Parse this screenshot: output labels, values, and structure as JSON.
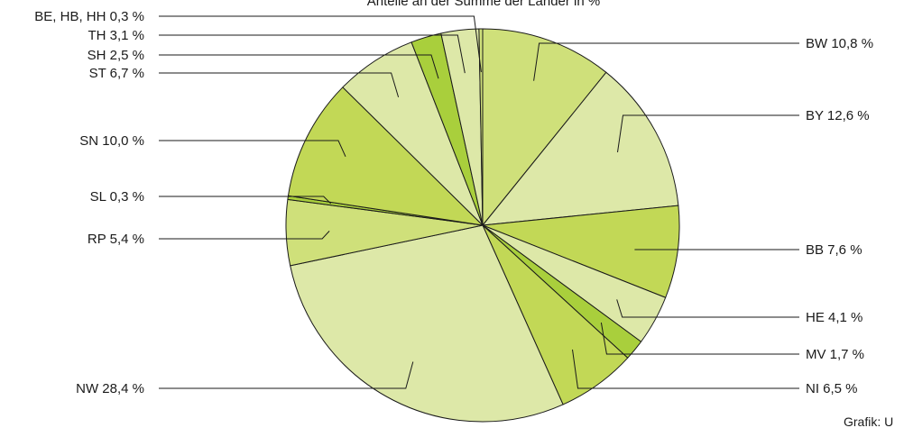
{
  "chart_data": {
    "type": "pie",
    "title": "Anteile an der Summe der Länder in %",
    "credit": "Grafik: U",
    "unit": "%",
    "slices": [
      {
        "label": "BW 10,8 %",
        "name": "BW",
        "value": 10.8,
        "color": "#cfe07a"
      },
      {
        "label": "BY 12,6 %",
        "name": "BY",
        "value": 12.6,
        "color": "#dde8a8"
      },
      {
        "label": "BB 7,6 %",
        "name": "BB",
        "value": 7.6,
        "color": "#c2d856"
      },
      {
        "label": "HE 4,1 %",
        "name": "HE",
        "value": 4.1,
        "color": "#dde8a8"
      },
      {
        "label": "MV 1,7 %",
        "name": "MV",
        "value": 1.7,
        "color": "#a9cf3c"
      },
      {
        "label": "NI 6,5 %",
        "name": "NI",
        "value": 6.5,
        "color": "#c2d856"
      },
      {
        "label": "NW 28,4 %",
        "name": "NW",
        "value": 28.4,
        "color": "#dde8a8"
      },
      {
        "label": "RP 5,4 %",
        "name": "RP",
        "value": 5.4,
        "color": "#cfe07a"
      },
      {
        "label": "SL 0,3 %",
        "name": "SL",
        "value": 0.3,
        "color": "#a9cf3c"
      },
      {
        "label": "SN 10,0 %",
        "name": "SN",
        "value": 10.0,
        "color": "#c2d856"
      },
      {
        "label": "ST 6,7 %",
        "name": "ST",
        "value": 6.7,
        "color": "#dde8a8"
      },
      {
        "label": "SH 2,5 %",
        "name": "SH",
        "value": 2.5,
        "color": "#a9cf3c"
      },
      {
        "label": "TH 3,1 %",
        "name": "TH",
        "value": 3.1,
        "color": "#dde8a8"
      },
      {
        "label": "BE, HB, HH 0,3 %",
        "name": "BE, HB, HH",
        "value": 0.3,
        "color": "#cfe07a"
      }
    ]
  }
}
